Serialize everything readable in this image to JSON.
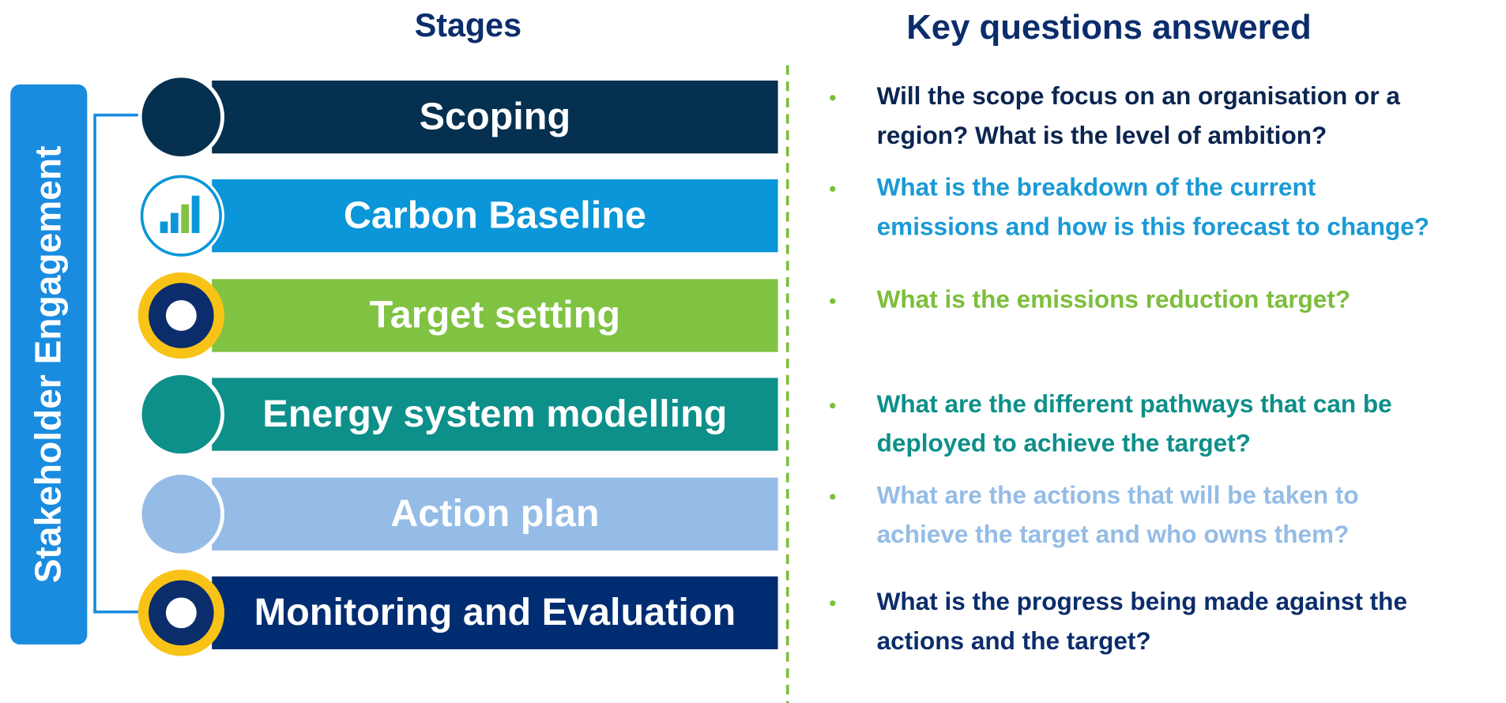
{
  "header": {
    "stages_title": "Stages",
    "questions_title": "Key questions answered"
  },
  "side_label": "Stakeholder Engagement",
  "stages": [
    {
      "label": "Scoping",
      "color": "#05304f",
      "question": [
        "Will the scope focus on an organisation or a",
        "region? What is the level of ambition?"
      ],
      "question_color": "#0b2550"
    },
    {
      "label": "Carbon Baseline",
      "color": "#0a96d8",
      "question": [
        "What is the breakdown of the current",
        "emissions and how is this forecast to change?"
      ],
      "question_color": "#1a9ad6"
    },
    {
      "label": "Target setting",
      "color": "#80c242",
      "question": [
        "What is the emissions reduction target?"
      ],
      "question_color": "#7dbe3b"
    },
    {
      "label": "Energy system modelling",
      "color": "#0d8f8a",
      "question": [
        "What are the different pathways that can be",
        "deployed to achieve the target?"
      ],
      "question_color": "#0d8f8a"
    },
    {
      "label": "Action plan",
      "color": "#94bce6",
      "question": [
        "What are the actions that will be taken to",
        "achieve the target and who owns them?"
      ],
      "question_color": "#94bce6"
    },
    {
      "label": "Monitoring and Evaluation",
      "color": "#002d72",
      "question": [
        "What is the progress being made against the",
        "actions and the target?"
      ],
      "question_color": "#0b2d6b"
    }
  ]
}
